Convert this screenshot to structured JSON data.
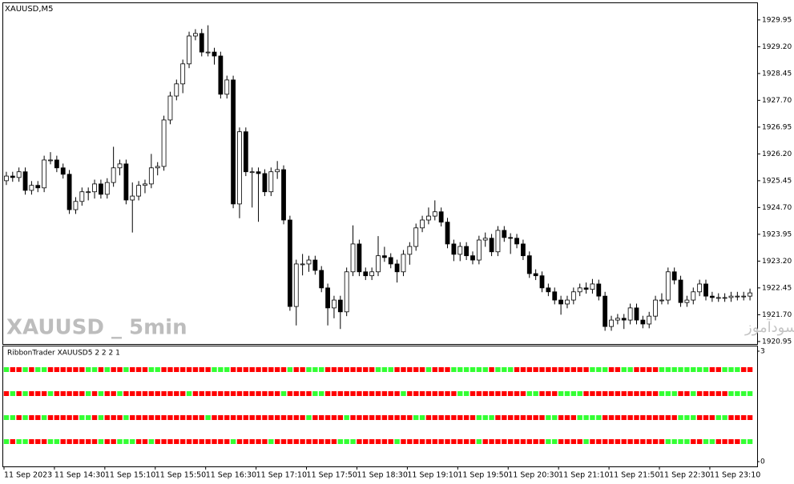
{
  "chart_data": {
    "type": "candlestick",
    "title": "XAUUSD,M5",
    "watermark": "XAUUSD _ 5min",
    "watermark_fa": "انتشار در سایت سودآموز",
    "up_color": "#ffffff",
    "down_color": "#000000",
    "ylim": [
      1920.88,
      1930.44
    ],
    "yticks": [
      1929.95,
      {
        "value": 1929.2,
        "label": "1929.20"
      },
      1928.45,
      {
        "value": 1927.7,
        "label": "1927.70"
      },
      1926.95,
      {
        "value": 1926.2,
        "label": "1926.20"
      },
      1925.45,
      {
        "value": 1924.7,
        "label": "1924.70"
      },
      1923.95,
      {
        "value": 1923.2,
        "label": "1923.20"
      },
      1922.45,
      {
        "value": 1921.7,
        "label": "1921.70"
      },
      1920.95
    ],
    "x_labels": [
      "11 Sep 2023",
      "11 Sep 14:30",
      "11 Sep 15:10",
      "11 Sep 15:50",
      "11 Sep 16:30",
      "11 Sep 17:10",
      "11 Sep 17:50",
      "11 Sep 18:30",
      "11 Sep 19:10",
      "11 Sep 19:50",
      "11 Sep 20:30",
      "11 Sep 21:10",
      "11 Sep 21:50",
      "11 Sep 22:30",
      "11 Sep 23:10"
    ],
    "candles": [
      [
        1925.45,
        1925.7,
        1925.33,
        1925.58
      ],
      [
        1925.58,
        1925.7,
        1925.42,
        1925.54
      ],
      [
        1925.54,
        1925.82,
        1925.42,
        1925.7
      ],
      [
        1925.7,
        1925.82,
        1925.06,
        1925.18
      ],
      [
        1925.18,
        1925.44,
        1925.06,
        1925.32
      ],
      [
        1925.32,
        1925.44,
        1925.13,
        1925.25
      ],
      [
        1925.25,
        1926.15,
        1925.13,
        1926.03
      ],
      [
        1926.03,
        1926.25,
        1925.91,
        1926.03
      ],
      [
        1926.03,
        1926.15,
        1925.69,
        1925.81
      ],
      [
        1925.81,
        1925.93,
        1925.51,
        1925.63
      ],
      [
        1925.63,
        1925.75,
        1924.52,
        1924.64
      ],
      [
        1924.64,
        1924.99,
        1924.52,
        1924.87
      ],
      [
        1924.87,
        1925.26,
        1924.75,
        1925.14
      ],
      [
        1925.14,
        1925.26,
        1924.9,
        1925.14
      ],
      [
        1925.14,
        1925.48,
        1924.95,
        1925.36
      ],
      [
        1925.36,
        1925.48,
        1924.95,
        1925.07
      ],
      [
        1925.07,
        1925.52,
        1924.95,
        1925.4
      ],
      [
        1925.4,
        1926.4,
        1925.28,
        1925.81
      ],
      [
        1925.81,
        1926.04,
        1925.6,
        1925.92
      ],
      [
        1925.92,
        1926.04,
        1924.79,
        1924.91
      ],
      [
        1924.91,
        1925.4,
        1924.0,
        1925.02
      ],
      [
        1925.02,
        1925.44,
        1924.9,
        1925.32
      ],
      [
        1925.32,
        1925.48,
        1925.1,
        1925.36
      ],
      [
        1925.36,
        1926.2,
        1925.24,
        1925.81
      ],
      [
        1925.81,
        1925.97,
        1925.6,
        1925.85
      ],
      [
        1925.85,
        1927.27,
        1925.73,
        1927.15
      ],
      [
        1927.15,
        1927.94,
        1927.03,
        1927.82
      ],
      [
        1927.82,
        1928.28,
        1927.7,
        1928.16
      ],
      [
        1928.16,
        1928.84,
        1927.9,
        1928.72
      ],
      [
        1928.72,
        1929.62,
        1928.6,
        1929.5
      ],
      [
        1929.5,
        1929.69,
        1929.38,
        1929.57
      ],
      [
        1929.57,
        1929.7,
        1928.93,
        1929.05
      ],
      [
        1929.05,
        1929.8,
        1928.93,
        1929.05
      ],
      [
        1929.05,
        1929.17,
        1928.7,
        1928.94
      ],
      [
        1928.94,
        1929.06,
        1927.75,
        1927.87
      ],
      [
        1927.87,
        1928.39,
        1927.75,
        1928.27
      ],
      [
        1928.27,
        1928.39,
        1924.68,
        1924.8
      ],
      [
        1924.8,
        1926.94,
        1924.4,
        1926.82
      ],
      [
        1926.82,
        1926.94,
        1925.58,
        1925.7
      ],
      [
        1925.7,
        1925.82,
        1924.7,
        1925.7
      ],
      [
        1925.7,
        1925.82,
        1924.3,
        1925.65
      ],
      [
        1925.65,
        1925.77,
        1925.02,
        1925.14
      ],
      [
        1925.14,
        1925.82,
        1925.02,
        1925.7
      ],
      [
        1925.7,
        1926.0,
        1925.5,
        1925.76
      ],
      [
        1925.76,
        1925.88,
        1924.23,
        1924.35
      ],
      [
        1924.35,
        1924.47,
        1921.81,
        1921.93
      ],
      [
        1921.93,
        1923.24,
        1921.4,
        1923.12
      ],
      [
        1923.12,
        1923.4,
        1922.8,
        1923.12
      ],
      [
        1923.12,
        1923.35,
        1922.9,
        1923.23
      ],
      [
        1923.23,
        1923.35,
        1922.82,
        1922.94
      ],
      [
        1922.94,
        1923.06,
        1922.33,
        1922.45
      ],
      [
        1922.45,
        1922.57,
        1921.4,
        1921.89
      ],
      [
        1921.89,
        1922.23,
        1921.6,
        1922.11
      ],
      [
        1922.11,
        1922.23,
        1921.3,
        1921.78
      ],
      [
        1921.78,
        1923.02,
        1921.66,
        1922.9
      ],
      [
        1922.9,
        1924.2,
        1922.78,
        1923.68
      ],
      [
        1923.68,
        1923.8,
        1922.78,
        1922.9
      ],
      [
        1922.9,
        1923.02,
        1922.67,
        1922.79
      ],
      [
        1922.79,
        1923.02,
        1922.67,
        1922.9
      ],
      [
        1922.9,
        1923.9,
        1922.78,
        1923.35
      ],
      [
        1923.35,
        1923.6,
        1923.18,
        1923.3
      ],
      [
        1923.3,
        1923.42,
        1923.0,
        1923.12
      ],
      [
        1923.12,
        1923.24,
        1922.6,
        1922.9
      ],
      [
        1922.9,
        1923.51,
        1922.78,
        1923.39
      ],
      [
        1923.39,
        1923.73,
        1923.1,
        1923.61
      ],
      [
        1923.61,
        1924.25,
        1923.49,
        1924.13
      ],
      [
        1924.13,
        1924.47,
        1924.01,
        1924.35
      ],
      [
        1924.35,
        1924.7,
        1924.23,
        1924.46
      ],
      [
        1924.46,
        1924.9,
        1924.34,
        1924.58
      ],
      [
        1924.58,
        1924.7,
        1924.17,
        1924.29
      ],
      [
        1924.29,
        1924.41,
        1923.56,
        1923.68
      ],
      [
        1923.68,
        1923.8,
        1923.2,
        1923.39
      ],
      [
        1923.39,
        1923.73,
        1923.2,
        1923.61
      ],
      [
        1923.61,
        1923.73,
        1923.23,
        1923.35
      ],
      [
        1923.35,
        1923.47,
        1923.11,
        1923.23
      ],
      [
        1923.23,
        1923.91,
        1923.11,
        1923.79
      ],
      [
        1923.79,
        1924.0,
        1923.6,
        1923.84
      ],
      [
        1923.84,
        1923.96,
        1923.34,
        1923.46
      ],
      [
        1923.46,
        1924.18,
        1923.34,
        1924.06
      ],
      [
        1924.06,
        1924.18,
        1923.74,
        1923.86
      ],
      [
        1923.86,
        1923.98,
        1923.4,
        1923.84
      ],
      [
        1923.84,
        1923.96,
        1923.56,
        1923.68
      ],
      [
        1923.68,
        1923.8,
        1923.23,
        1923.35
      ],
      [
        1923.35,
        1923.47,
        1922.73,
        1922.85
      ],
      [
        1922.85,
        1922.97,
        1922.67,
        1922.79
      ],
      [
        1922.79,
        1922.91,
        1922.33,
        1922.45
      ],
      [
        1922.45,
        1922.57,
        1922.22,
        1922.34
      ],
      [
        1922.34,
        1922.46,
        1921.99,
        1922.11
      ],
      [
        1922.11,
        1922.23,
        1921.7,
        1922.0
      ],
      [
        1922.0,
        1922.23,
        1921.88,
        1922.11
      ],
      [
        1922.11,
        1922.46,
        1921.99,
        1922.34
      ],
      [
        1922.34,
        1922.57,
        1922.22,
        1922.45
      ],
      [
        1922.45,
        1922.6,
        1922.29,
        1922.41
      ],
      [
        1922.41,
        1922.7,
        1922.29,
        1922.56
      ],
      [
        1922.56,
        1922.68,
        1922.1,
        1922.22
      ],
      [
        1922.22,
        1922.34,
        1921.25,
        1921.37
      ],
      [
        1921.37,
        1921.67,
        1921.25,
        1921.55
      ],
      [
        1921.55,
        1921.72,
        1921.43,
        1921.6
      ],
      [
        1921.6,
        1921.72,
        1921.3,
        1921.55
      ],
      [
        1921.55,
        1922.01,
        1921.43,
        1921.89
      ],
      [
        1921.89,
        1922.01,
        1921.43,
        1921.55
      ],
      [
        1921.55,
        1921.67,
        1921.32,
        1921.44
      ],
      [
        1921.44,
        1921.78,
        1921.32,
        1921.66
      ],
      [
        1921.66,
        1922.23,
        1921.54,
        1922.11
      ],
      [
        1922.11,
        1922.3,
        1921.99,
        1922.11
      ],
      [
        1922.11,
        1923.02,
        1921.99,
        1922.9
      ],
      [
        1922.9,
        1923.02,
        1922.55,
        1922.67
      ],
      [
        1922.67,
        1922.79,
        1921.92,
        1922.04
      ],
      [
        1922.04,
        1922.23,
        1921.92,
        1922.11
      ],
      [
        1922.11,
        1922.46,
        1921.99,
        1922.34
      ],
      [
        1922.34,
        1922.68,
        1922.22,
        1922.56
      ],
      [
        1922.56,
        1922.68,
        1922.1,
        1922.22
      ],
      [
        1922.22,
        1922.34,
        1922.06,
        1922.18
      ],
      [
        1922.18,
        1922.3,
        1922.06,
        1922.18
      ],
      [
        1922.18,
        1922.3,
        1922.06,
        1922.18
      ],
      [
        1922.18,
        1922.34,
        1922.06,
        1922.22
      ],
      [
        1922.22,
        1922.34,
        1922.1,
        1922.22
      ],
      [
        1922.22,
        1922.34,
        1922.1,
        1922.22
      ],
      [
        1922.22,
        1922.43,
        1922.1,
        1922.31
      ]
    ],
    "indicator": {
      "type": "ribbon",
      "title": "RibbonTrader XAUUSD5 2 2 2 1",
      "colors": [
        "#ff0000",
        "#33ff33"
      ],
      "ylim": [
        -0.13,
        3.13
      ],
      "yticks": [
        0,
        3
      ],
      "rows": [
        [
          1,
          0,
          0,
          1,
          0,
          1,
          1,
          0,
          0,
          0,
          0,
          0,
          0,
          1,
          1,
          0,
          1,
          0,
          0,
          1,
          0,
          0,
          0,
          1,
          1,
          0,
          0,
          0,
          0,
          0,
          0,
          0,
          0,
          1,
          1,
          1,
          0,
          0,
          0,
          0,
          0,
          0,
          0,
          0,
          0,
          1,
          0,
          0,
          1,
          1,
          1,
          0,
          0,
          0,
          0,
          0,
          0,
          0,
          0,
          1,
          1,
          1,
          0,
          0,
          0,
          0,
          0,
          1,
          0,
          0,
          0,
          1,
          1,
          1,
          1,
          1,
          1,
          0,
          1,
          1,
          1,
          0,
          0,
          0,
          0,
          0,
          0,
          0,
          0,
          0,
          0,
          0,
          0,
          1,
          1,
          1,
          0,
          0,
          1,
          1,
          0,
          0,
          0,
          0,
          1,
          1,
          1,
          1,
          1,
          1,
          1,
          1,
          0,
          0,
          1,
          1,
          1,
          0,
          0
        ],
        [
          0,
          1,
          0,
          1,
          0,
          0,
          0,
          1,
          0,
          0,
          0,
          0,
          0,
          1,
          0,
          1,
          0,
          0,
          1,
          0,
          0,
          0,
          0,
          0,
          0,
          0,
          0,
          0,
          0,
          1,
          0,
          0,
          0,
          0,
          0,
          0,
          0,
          0,
          0,
          0,
          0,
          0,
          0,
          0,
          1,
          0,
          0,
          0,
          0,
          1,
          1,
          0,
          0,
          0,
          0,
          0,
          0,
          0,
          0,
          0,
          0,
          0,
          0,
          1,
          0,
          0,
          0,
          0,
          0,
          0,
          0,
          0,
          1,
          1,
          0,
          0,
          0,
          0,
          0,
          0,
          0,
          0,
          0,
          1,
          1,
          0,
          0,
          0,
          1,
          1,
          1,
          1,
          0,
          0,
          0,
          0,
          0,
          0,
          0,
          0,
          0,
          0,
          0,
          0,
          1,
          1,
          1,
          0,
          0,
          1,
          0,
          0,
          0,
          0,
          0,
          1,
          1,
          1,
          1
        ],
        [
          1,
          1,
          0,
          1,
          0,
          0,
          1,
          0,
          0,
          0,
          0,
          0,
          1,
          1,
          0,
          1,
          0,
          0,
          0,
          1,
          0,
          0,
          0,
          0,
          0,
          0,
          0,
          0,
          0,
          0,
          0,
          0,
          1,
          0,
          0,
          0,
          0,
          0,
          0,
          0,
          0,
          0,
          0,
          0,
          0,
          0,
          0,
          0,
          1,
          0,
          0,
          0,
          0,
          0,
          1,
          0,
          0,
          0,
          0,
          0,
          0,
          0,
          0,
          0,
          0,
          1,
          1,
          0,
          0,
          0,
          0,
          0,
          0,
          0,
          0,
          1,
          1,
          1,
          0,
          0,
          0,
          0,
          0,
          0,
          0,
          0,
          1,
          1,
          0,
          0,
          0,
          1,
          1,
          1,
          1,
          0,
          0,
          0,
          0,
          0,
          0,
          0,
          0,
          0,
          0,
          0,
          0,
          1,
          1,
          1,
          0,
          0,
          0,
          1,
          1,
          0,
          0,
          0,
          0
        ],
        [
          1,
          0,
          1,
          1,
          0,
          0,
          0,
          1,
          1,
          0,
          0,
          0,
          0,
          0,
          0,
          1,
          0,
          0,
          1,
          1,
          1,
          0,
          0,
          1,
          0,
          0,
          0,
          0,
          0,
          0,
          0,
          0,
          0,
          0,
          0,
          0,
          1,
          0,
          0,
          0,
          0,
          0,
          1,
          0,
          0,
          0,
          0,
          0,
          0,
          0,
          0,
          0,
          0,
          1,
          1,
          1,
          0,
          0,
          0,
          0,
          0,
          0,
          1,
          0,
          0,
          0,
          0,
          0,
          0,
          0,
          0,
          0,
          0,
          0,
          0,
          1,
          0,
          0,
          0,
          0,
          0,
          0,
          0,
          0,
          0,
          0,
          1,
          1,
          0,
          0,
          0,
          0,
          1,
          0,
          0,
          0,
          0,
          0,
          0,
          0,
          0,
          0,
          0,
          0,
          0,
          1,
          1,
          1,
          1,
          0,
          0,
          1,
          1,
          0,
          0,
          0,
          0,
          1,
          1
        ]
      ]
    }
  }
}
